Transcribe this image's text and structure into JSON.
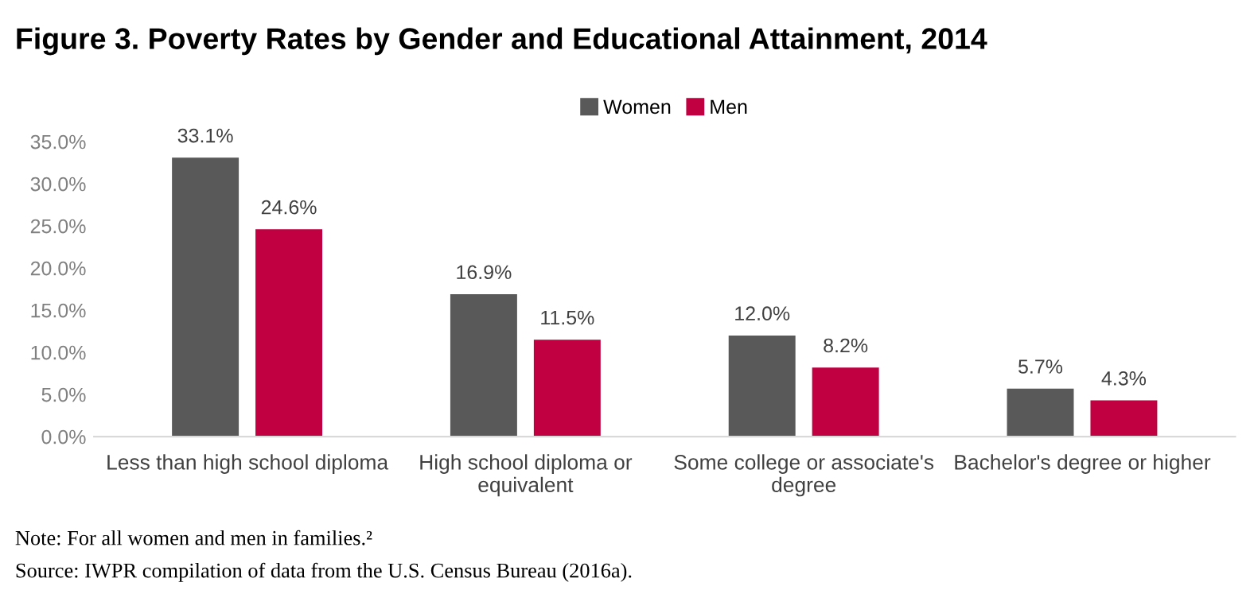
{
  "chart_data": {
    "type": "bar",
    "title": "Figure 3. Poverty Rates by Gender and Educational Attainment, 2014",
    "categories": [
      "Less than high school diploma",
      "High school diploma or\nequivalent",
      "Some college or associate's\ndegree",
      "Bachelor's degree or higher"
    ],
    "series": [
      {
        "name": "Women",
        "color": "#595959",
        "values": [
          33.1,
          16.9,
          12.0,
          5.7
        ],
        "value_labels": [
          "33.1%",
          "16.9%",
          "12.0%",
          "5.7%"
        ]
      },
      {
        "name": "Men",
        "color": "#c00040",
        "values": [
          24.6,
          11.5,
          8.2,
          4.3
        ],
        "value_labels": [
          "24.6%",
          "11.5%",
          "8.2%",
          "4.3%"
        ]
      }
    ],
    "ylim": [
      0,
      35
    ],
    "yticks": [
      {
        "value": 0,
        "label": "0.0%"
      },
      {
        "value": 5,
        "label": "5.0%"
      },
      {
        "value": 10,
        "label": "10.0%"
      },
      {
        "value": 15,
        "label": "15.0%"
      },
      {
        "value": 20,
        "label": "20.0%"
      },
      {
        "value": 25,
        "label": "25.0%"
      },
      {
        "value": 30,
        "label": "30.0%"
      },
      {
        "value": 35,
        "label": "35.0%"
      }
    ],
    "grid": false,
    "legend": "top",
    "annotations": [
      "Note: For all women and men in families.²",
      "Source: IWPR compilation of data from the U.S. Census Bureau (2016a)."
    ]
  }
}
